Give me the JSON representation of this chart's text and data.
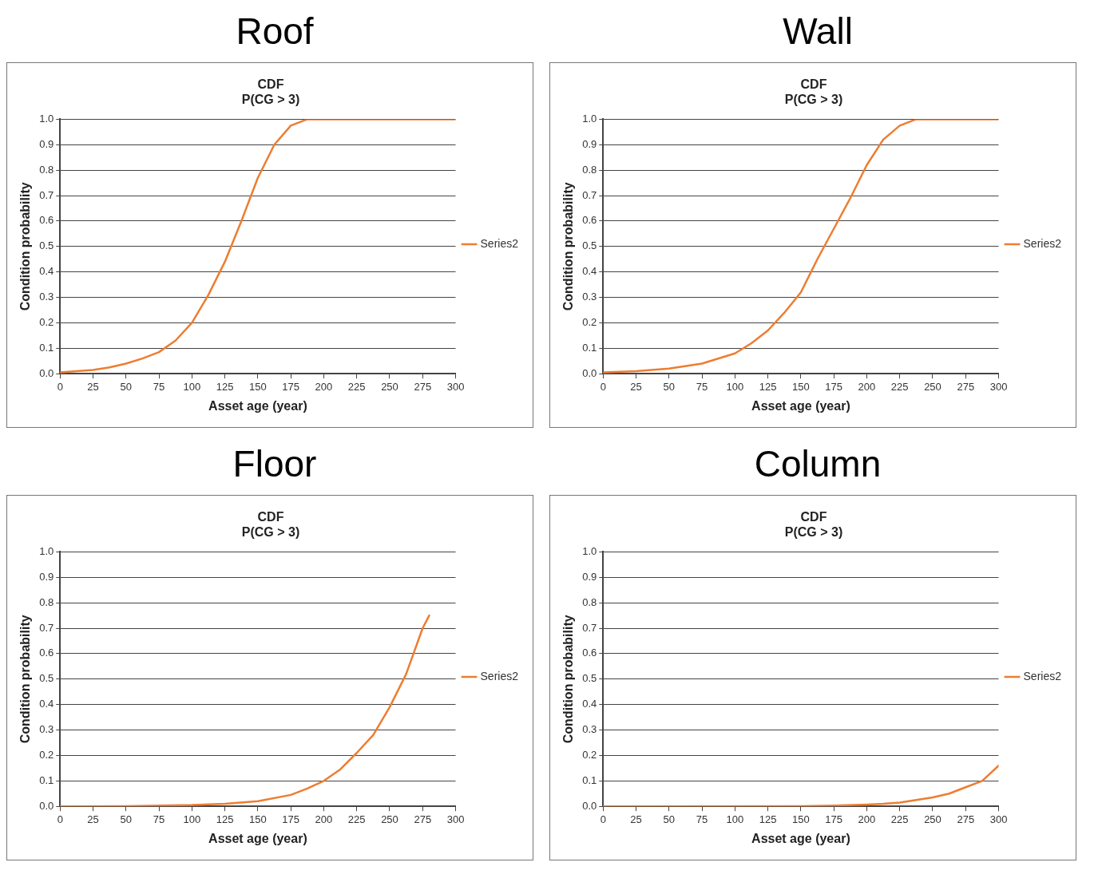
{
  "chart_data": [
    {
      "type": "line",
      "title": "Roof",
      "subtitle": "CDF\nP(CG > 3)",
      "xlabel": "Asset age (year)",
      "ylabel": "Condition probability",
      "x": [
        0,
        12.5,
        25,
        37.5,
        50,
        62.5,
        75,
        87.5,
        100,
        112.5,
        125,
        137.5,
        150,
        162.5,
        175,
        187.5,
        200,
        225,
        250,
        275,
        300
      ],
      "series": [
        {
          "name": "Series2",
          "color": "#ed7d31",
          "values": [
            0.005,
            0.01,
            0.015,
            0.025,
            0.04,
            0.06,
            0.085,
            0.13,
            0.2,
            0.31,
            0.44,
            0.6,
            0.77,
            0.9,
            0.975,
            1.0,
            1.0,
            1.0,
            1.0,
            1.0,
            1.0
          ]
        }
      ],
      "xlim": [
        0,
        300
      ],
      "xticks": [
        0,
        25,
        50,
        75,
        100,
        125,
        150,
        175,
        200,
        225,
        250,
        275,
        300
      ],
      "ylim": [
        0,
        1
      ],
      "yticks": [
        {
          "value": 0,
          "label": "0.0"
        },
        {
          "value": 0.1,
          "label": "0.1"
        },
        {
          "value": 0.2,
          "label": "0.2"
        },
        {
          "value": 0.3,
          "label": "0.3"
        },
        {
          "value": 0.4,
          "label": "0.4"
        },
        {
          "value": 0.5,
          "label": "0.5"
        },
        {
          "value": 0.6,
          "label": "0.6"
        },
        {
          "value": 0.7,
          "label": "0.7"
        },
        {
          "value": 0.8,
          "label": "0.8"
        },
        {
          "value": 0.9,
          "label": "0.9"
        },
        {
          "value": 1,
          "label": "1.0"
        }
      ],
      "grid": "y",
      "legend": "right",
      "marker": "none",
      "line_style": "solid"
    },
    {
      "type": "line",
      "title": "Wall",
      "subtitle": "CDF\nP(CG > 3)",
      "xlabel": "Asset age (year)",
      "ylabel": "Condition probability",
      "x": [
        0,
        25,
        50,
        75,
        100,
        112.5,
        125,
        137.5,
        150,
        162.5,
        175,
        187.5,
        200,
        212.5,
        225,
        237.5,
        250,
        275,
        300
      ],
      "series": [
        {
          "name": "Series2",
          "color": "#ed7d31",
          "values": [
            0.005,
            0.01,
            0.02,
            0.04,
            0.08,
            0.12,
            0.17,
            0.24,
            0.32,
            0.45,
            0.57,
            0.69,
            0.82,
            0.92,
            0.975,
            1.0,
            1.0,
            1.0,
            1.0
          ]
        }
      ],
      "xlim": [
        0,
        300
      ],
      "xticks": [
        0,
        25,
        50,
        75,
        100,
        125,
        150,
        175,
        200,
        225,
        250,
        275,
        300
      ],
      "ylim": [
        0,
        1
      ],
      "yticks": [
        {
          "value": 0,
          "label": "0.0"
        },
        {
          "value": 0.1,
          "label": "0.1"
        },
        {
          "value": 0.2,
          "label": "0.2"
        },
        {
          "value": 0.3,
          "label": "0.3"
        },
        {
          "value": 0.4,
          "label": "0.4"
        },
        {
          "value": 0.5,
          "label": "0.5"
        },
        {
          "value": 0.6,
          "label": "0.6"
        },
        {
          "value": 0.7,
          "label": "0.7"
        },
        {
          "value": 0.8,
          "label": "0.8"
        },
        {
          "value": 0.9,
          "label": "0.9"
        },
        {
          "value": 1,
          "label": "1.0"
        }
      ],
      "grid": "y",
      "legend": "right",
      "marker": "none",
      "line_style": "solid"
    },
    {
      "type": "line",
      "title": "Floor",
      "subtitle": "CDF\nP(CG > 3)",
      "xlabel": "Asset age (year)",
      "ylabel": "Condition probability",
      "x": [
        0,
        50,
        75,
        100,
        125,
        150,
        175,
        187.5,
        200,
        212.5,
        225,
        237.5,
        250,
        262.5,
        275,
        280
      ],
      "series": [
        {
          "name": "Series2",
          "color": "#ed7d31",
          "values": [
            0,
            0.001,
            0.003,
            0.005,
            0.01,
            0.02,
            0.045,
            0.07,
            0.1,
            0.145,
            0.21,
            0.28,
            0.39,
            0.52,
            0.7,
            0.75
          ]
        }
      ],
      "xlim": [
        0,
        300
      ],
      "xticks": [
        0,
        25,
        50,
        75,
        100,
        125,
        150,
        175,
        200,
        225,
        250,
        275,
        300
      ],
      "ylim": [
        0,
        1
      ],
      "yticks": [
        {
          "value": 0,
          "label": "0.0"
        },
        {
          "value": 0.1,
          "label": "0.1"
        },
        {
          "value": 0.2,
          "label": "0.2"
        },
        {
          "value": 0.3,
          "label": "0.3"
        },
        {
          "value": 0.4,
          "label": "0.4"
        },
        {
          "value": 0.5,
          "label": "0.5"
        },
        {
          "value": 0.6,
          "label": "0.6"
        },
        {
          "value": 0.7,
          "label": "0.7"
        },
        {
          "value": 0.8,
          "label": "0.8"
        },
        {
          "value": 0.9,
          "label": "0.9"
        },
        {
          "value": 1,
          "label": "1.0"
        }
      ],
      "grid": "y",
      "legend": "right",
      "marker": "none",
      "line_style": "solid"
    },
    {
      "type": "line",
      "title": "Column",
      "subtitle": "CDF\nP(CG > 3)",
      "xlabel": "Asset age (year)",
      "ylabel": "Condition probability",
      "x": [
        0,
        150,
        175,
        200,
        212.5,
        225,
        237.5,
        250,
        262.5,
        275,
        287.5,
        300
      ],
      "series": [
        {
          "name": "Series2",
          "color": "#ed7d31",
          "values": [
            0,
            0.001,
            0.003,
            0.007,
            0.01,
            0.015,
            0.025,
            0.035,
            0.05,
            0.075,
            0.1,
            0.16
          ]
        }
      ],
      "xlim": [
        0,
        300
      ],
      "xticks": [
        0,
        25,
        50,
        75,
        100,
        125,
        150,
        175,
        200,
        225,
        250,
        275,
        300
      ],
      "ylim": [
        0,
        1
      ],
      "yticks": [
        {
          "value": 0,
          "label": "0.0"
        },
        {
          "value": 0.1,
          "label": "0.1"
        },
        {
          "value": 0.2,
          "label": "0.2"
        },
        {
          "value": 0.3,
          "label": "0.3"
        },
        {
          "value": 0.4,
          "label": "0.4"
        },
        {
          "value": 0.5,
          "label": "0.5"
        },
        {
          "value": 0.6,
          "label": "0.6"
        },
        {
          "value": 0.7,
          "label": "0.7"
        },
        {
          "value": 0.8,
          "label": "0.8"
        },
        {
          "value": 0.9,
          "label": "0.9"
        },
        {
          "value": 1,
          "label": "1.0"
        }
      ],
      "grid": "y",
      "legend": "right",
      "marker": "none",
      "line_style": "solid"
    }
  ]
}
